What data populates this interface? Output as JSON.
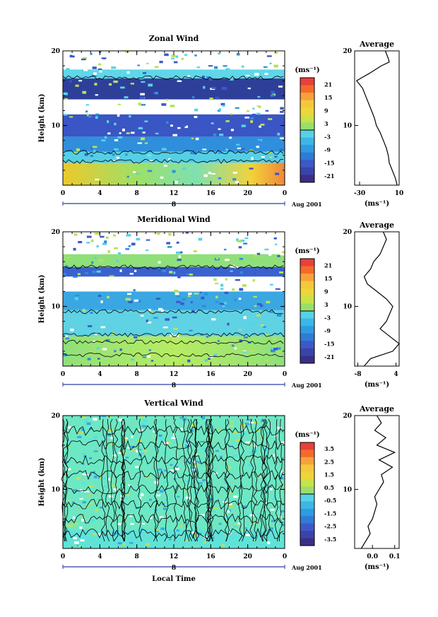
{
  "chart_data": [
    {
      "type": "heatmap",
      "title": "Zonal Wind",
      "ylabel": "Height (km)",
      "ylim": [
        2,
        20
      ],
      "yticks": [
        "10",
        "20"
      ],
      "xlim": [
        0,
        24
      ],
      "xticks": [
        "0",
        "4",
        "8",
        "12",
        "16",
        "20",
        "0"
      ],
      "day_label": "8",
      "date_label": "Aug 2001",
      "colorbar": {
        "unit": "(ms⁻¹)",
        "ticks": [
          "21",
          "15",
          "9",
          "3",
          "-3",
          "-9",
          "-15",
          "-21"
        ]
      },
      "average": {
        "title": "Average",
        "xticks": [
          "-30",
          "10"
        ],
        "xlim": [
          -35,
          10
        ],
        "xunit": "(ms⁻¹)",
        "yticks": [
          "10",
          "20"
        ],
        "profile": [
          [
            2,
            8
          ],
          [
            3,
            6
          ],
          [
            4,
            3
          ],
          [
            5,
            0
          ],
          [
            6,
            -1
          ],
          [
            7,
            -3
          ],
          [
            8,
            -6
          ],
          [
            9,
            -9
          ],
          [
            10,
            -13
          ],
          [
            11,
            -15
          ],
          [
            12,
            -18
          ],
          [
            13,
            -21
          ],
          [
            14,
            -24
          ],
          [
            15,
            -27
          ],
          [
            16,
            -33
          ],
          [
            17,
            -20
          ],
          [
            18,
            -8
          ],
          [
            18.5,
            0
          ],
          [
            19,
            -1
          ],
          [
            20,
            -4
          ]
        ]
      }
    },
    {
      "type": "heatmap",
      "title": "Meridional Wind",
      "ylabel": "Height (km)",
      "ylim": [
        2,
        20
      ],
      "yticks": [
        "10",
        "20"
      ],
      "xlim": [
        0,
        24
      ],
      "xticks": [
        "0",
        "4",
        "8",
        "12",
        "16",
        "20",
        "0"
      ],
      "day_label": "8",
      "date_label": "Aug 2001",
      "colorbar": {
        "unit": "(ms⁻¹)",
        "ticks": [
          "21",
          "15",
          "9",
          "3",
          "-3",
          "-9",
          "-15",
          "-21"
        ]
      },
      "average": {
        "title": "Average",
        "xticks": [
          "-8",
          "4"
        ],
        "xlim": [
          -9,
          5
        ],
        "xunit": "(ms⁻¹)",
        "yticks": [
          "10",
          "20"
        ],
        "profile": [
          [
            2,
            -6
          ],
          [
            3,
            -4
          ],
          [
            4,
            3
          ],
          [
            5,
            5
          ],
          [
            6,
            2
          ],
          [
            7,
            -1
          ],
          [
            8,
            1
          ],
          [
            9,
            2
          ],
          [
            10,
            3
          ],
          [
            11,
            1
          ],
          [
            12,
            -2
          ],
          [
            13,
            -5
          ],
          [
            14,
            -6
          ],
          [
            15,
            -4
          ],
          [
            16,
            -3
          ],
          [
            17,
            -1
          ],
          [
            18,
            0
          ],
          [
            19,
            1
          ],
          [
            20,
            0
          ]
        ]
      }
    },
    {
      "type": "heatmap",
      "title": "Vertical Wind",
      "ylabel": "Height (km)",
      "xlabel": "Local Time",
      "ylim": [
        2,
        20
      ],
      "yticks": [
        "10",
        "20"
      ],
      "xlim": [
        0,
        24
      ],
      "xticks": [
        "0",
        "4",
        "8",
        "12",
        "16",
        "20",
        "0"
      ],
      "day_label": "8",
      "date_label": "Aug 2001",
      "colorbar": {
        "unit": "(ms⁻¹)",
        "ticks": [
          "3.5",
          "2.5",
          "1.5",
          "0.5",
          "-0.5",
          "-1.5",
          "-2.5",
          "-3.5"
        ]
      },
      "average": {
        "title": "Average",
        "xticks": [
          "0.0",
          "0.1"
        ],
        "xlim": [
          -0.08,
          0.12
        ],
        "xunit": "(ms⁻¹)",
        "yticks": [
          "10",
          "20"
        ],
        "profile": [
          [
            2,
            -0.05
          ],
          [
            3,
            -0.03
          ],
          [
            4,
            -0.01
          ],
          [
            5,
            -0.02
          ],
          [
            6,
            0.0
          ],
          [
            7,
            0.01
          ],
          [
            8,
            0.02
          ],
          [
            9,
            0.01
          ],
          [
            10,
            0.03
          ],
          [
            11,
            0.05
          ],
          [
            12,
            0.04
          ],
          [
            13,
            0.09
          ],
          [
            14,
            0.03
          ],
          [
            15,
            0.1
          ],
          [
            16,
            0.02
          ],
          [
            17,
            0.06
          ],
          [
            18,
            0.01
          ],
          [
            19,
            0.04
          ],
          [
            20,
            0.02
          ]
        ]
      }
    }
  ]
}
